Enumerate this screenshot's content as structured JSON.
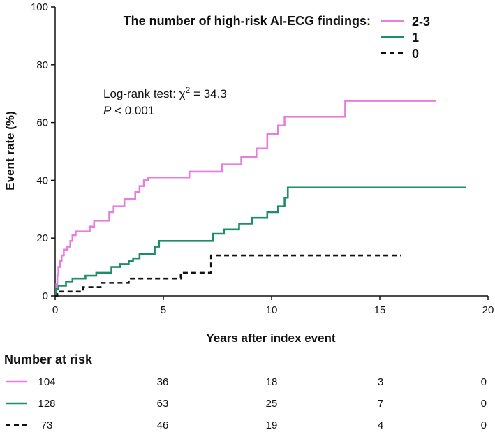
{
  "chart_data": {
    "type": "line",
    "subtype": "kaplan-meier-cumulative-incidence",
    "xlabel": "Years after index event",
    "ylabel": "Event rate (%)",
    "xlim": [
      0,
      20
    ],
    "ylim": [
      0,
      100
    ],
    "x_ticks": [
      "0",
      "5",
      "10",
      "15",
      "20"
    ],
    "y_ticks": [
      "0",
      "20",
      "40",
      "60",
      "80",
      "100"
    ],
    "legend": {
      "title": "The number of high-risk AI-ECG findings:",
      "placement": "top-right"
    },
    "annotation": {
      "line1": "Log-rank test: χ",
      "line1_sup": "2",
      "line1_tail": " = 34.3",
      "line2_italic": "P",
      "line2_tail": " < 0.001"
    },
    "series": [
      {
        "name": "2-3",
        "color": "#e87ddf",
        "dash": "solid",
        "steps": [
          [
            0,
            0
          ],
          [
            0.05,
            4
          ],
          [
            0.1,
            7
          ],
          [
            0.15,
            10
          ],
          [
            0.22,
            12
          ],
          [
            0.3,
            14
          ],
          [
            0.4,
            16
          ],
          [
            0.55,
            17
          ],
          [
            0.7,
            19
          ],
          [
            0.8,
            21
          ],
          [
            0.95,
            22.3
          ],
          [
            1.6,
            24
          ],
          [
            1.8,
            26
          ],
          [
            2.5,
            29
          ],
          [
            2.7,
            31
          ],
          [
            3.2,
            33.5
          ],
          [
            3.7,
            36
          ],
          [
            3.9,
            38
          ],
          [
            4.1,
            40
          ],
          [
            4.3,
            41
          ],
          [
            6.2,
            43
          ],
          [
            7.7,
            45.5
          ],
          [
            8.6,
            48
          ],
          [
            9.3,
            51
          ],
          [
            9.8,
            56
          ],
          [
            10.3,
            59
          ],
          [
            10.6,
            62
          ],
          [
            13.4,
            67.5
          ],
          [
            17.6,
            67.5
          ]
        ]
      },
      {
        "name": "1",
        "color": "#1b8f66",
        "dash": "solid",
        "steps": [
          [
            0,
            0
          ],
          [
            0.05,
            2.5
          ],
          [
            0.15,
            3.5
          ],
          [
            0.5,
            5
          ],
          [
            0.8,
            6
          ],
          [
            1.4,
            7
          ],
          [
            1.9,
            8
          ],
          [
            2.6,
            10
          ],
          [
            3,
            11
          ],
          [
            3.4,
            12
          ],
          [
            3.6,
            13
          ],
          [
            3.9,
            14.5
          ],
          [
            4.6,
            17
          ],
          [
            4.8,
            19
          ],
          [
            7.3,
            21.5
          ],
          [
            7.8,
            23
          ],
          [
            8.5,
            25
          ],
          [
            9.1,
            27
          ],
          [
            9.8,
            29
          ],
          [
            10.3,
            31
          ],
          [
            10.6,
            34
          ],
          [
            10.75,
            37.5
          ],
          [
            19,
            37.5
          ]
        ]
      },
      {
        "name": "0",
        "color": "#111111",
        "dash": "dashed",
        "steps": [
          [
            0,
            0
          ],
          [
            0.1,
            1.5
          ],
          [
            1.3,
            3
          ],
          [
            2.1,
            4.5
          ],
          [
            3.4,
            6
          ],
          [
            5.8,
            8
          ],
          [
            7.2,
            14
          ],
          [
            16,
            14
          ]
        ]
      }
    ],
    "risk_table": {
      "title": "Number at risk",
      "times": [
        0,
        5,
        10,
        15,
        20
      ],
      "rows": [
        {
          "series": "2-3",
          "values": [
            "104",
            "36",
            "18",
            "3",
            "0"
          ]
        },
        {
          "series": "1",
          "values": [
            "128",
            "63",
            "25",
            "7",
            "0"
          ]
        },
        {
          "series": "0",
          "values": [
            "73",
            "46",
            "19",
            "4",
            "0"
          ]
        }
      ]
    }
  }
}
